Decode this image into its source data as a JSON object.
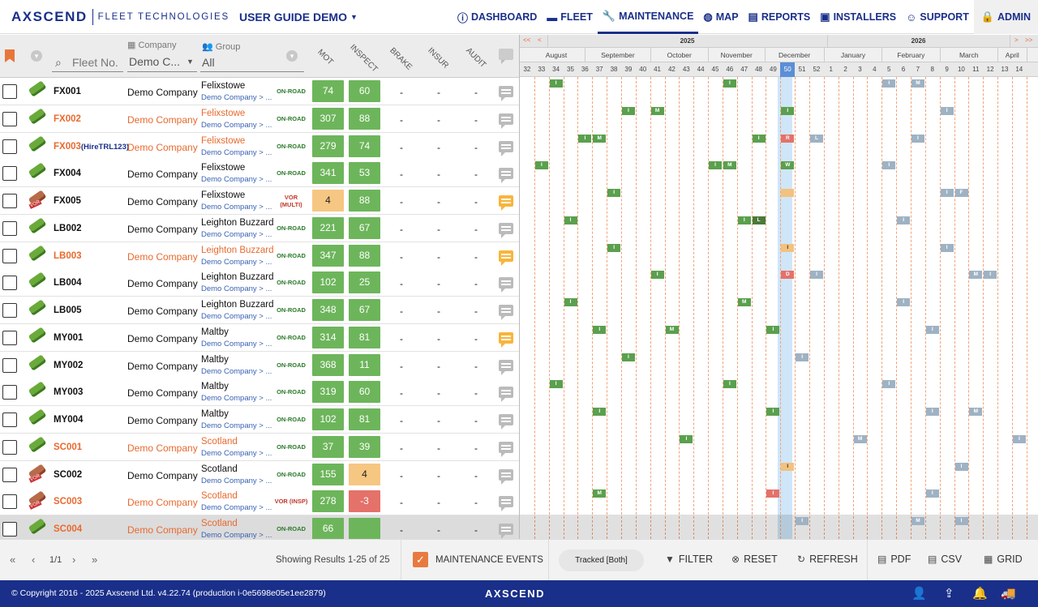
{
  "app": {
    "brand": "AXSCEND",
    "brand_sub": "FLEET TECHNOLOGIES",
    "guide_title": "USER GUIDE DEMO"
  },
  "nav": [
    {
      "label": "DASHBOARD",
      "icon": "info-icon"
    },
    {
      "label": "FLEET",
      "icon": "truck-icon"
    },
    {
      "label": "MAINTENANCE",
      "icon": "wrench-icon",
      "active": true
    },
    {
      "label": "MAP",
      "icon": "globe-icon"
    },
    {
      "label": "REPORTS",
      "icon": "report-icon"
    },
    {
      "label": "INSTALLERS",
      "icon": "id-card-icon"
    },
    {
      "label": "SUPPORT",
      "icon": "support-icon"
    },
    {
      "label": "ADMIN",
      "icon": "lock-icon"
    }
  ],
  "header": {
    "fleet_placeholder": "Fleet No.",
    "company_label": "Company",
    "company_value": "Demo C...",
    "group_label": "Group",
    "group_value": "All",
    "cols": [
      "MOT",
      "INSPECT",
      "BRAKE",
      "INSUR",
      "AUDIT"
    ]
  },
  "rows": [
    {
      "fleet": "FX001",
      "hire": "",
      "company": "Demo Company",
      "group": "Felixstowe",
      "sub": "Demo Company > ...",
      "status": "ON-ROAD",
      "mot": "74",
      "mot_c": "g",
      "insp": "60",
      "insp_c": "g",
      "chat": "grey",
      "truck": "g",
      "orange": false
    },
    {
      "fleet": "FX002",
      "hire": "",
      "company": "Demo Company",
      "group": "Felixstowe",
      "sub": "Demo Company > ...",
      "status": "ON-ROAD",
      "mot": "307",
      "mot_c": "g",
      "insp": "88",
      "insp_c": "g",
      "chat": "grey",
      "truck": "g",
      "orange": true
    },
    {
      "fleet": "FX003",
      "hire": "(HireTRL123)",
      "company": "Demo Company",
      "group": "Felixstowe",
      "sub": "Demo Company > ...",
      "status": "ON-ROAD",
      "mot": "279",
      "mot_c": "g",
      "insp": "74",
      "insp_c": "g",
      "chat": "grey",
      "truck": "g",
      "orange": true
    },
    {
      "fleet": "FX004",
      "hire": "",
      "company": "Demo Company",
      "group": "Felixstowe",
      "sub": "Demo Company > ...",
      "status": "ON-ROAD",
      "mot": "341",
      "mot_c": "g",
      "insp": "53",
      "insp_c": "g",
      "chat": "grey",
      "truck": "g",
      "orange": false
    },
    {
      "fleet": "FX005",
      "hire": "",
      "company": "Demo Company",
      "group": "Felixstowe",
      "sub": "Demo Company > ...",
      "status": "VOR\n(MULTI)",
      "mot": "4",
      "mot_c": "o",
      "insp": "88",
      "insp_c": "g",
      "chat": "yellow",
      "truck": "r",
      "orange": false
    },
    {
      "fleet": "LB002",
      "hire": "",
      "company": "Demo Company",
      "group": "Leighton Buzzard",
      "sub": "Demo Company > ...",
      "status": "ON-ROAD",
      "mot": "221",
      "mot_c": "g",
      "insp": "67",
      "insp_c": "g",
      "chat": "grey",
      "truck": "g",
      "orange": false
    },
    {
      "fleet": "LB003",
      "hire": "",
      "company": "Demo Company",
      "group": "Leighton Buzzard",
      "sub": "Demo Company > ...",
      "status": "ON-ROAD",
      "mot": "347",
      "mot_c": "g",
      "insp": "88",
      "insp_c": "g",
      "chat": "yellow",
      "truck": "g",
      "orange": true
    },
    {
      "fleet": "LB004",
      "hire": "",
      "company": "Demo Company",
      "group": "Leighton Buzzard",
      "sub": "Demo Company > ...",
      "status": "ON-ROAD",
      "mot": "102",
      "mot_c": "g",
      "insp": "25",
      "insp_c": "g",
      "chat": "grey",
      "truck": "g",
      "orange": false
    },
    {
      "fleet": "LB005",
      "hire": "",
      "company": "Demo Company",
      "group": "Leighton Buzzard",
      "sub": "Demo Company > ...",
      "status": "ON-ROAD",
      "mot": "348",
      "mot_c": "g",
      "insp": "67",
      "insp_c": "g",
      "chat": "grey",
      "truck": "g",
      "orange": false
    },
    {
      "fleet": "MY001",
      "hire": "",
      "company": "Demo Company",
      "group": "Maltby",
      "sub": "Demo Company > ...",
      "status": "ON-ROAD",
      "mot": "314",
      "mot_c": "g",
      "insp": "81",
      "insp_c": "g",
      "chat": "yellow",
      "truck": "g",
      "orange": false
    },
    {
      "fleet": "MY002",
      "hire": "",
      "company": "Demo Company",
      "group": "Maltby",
      "sub": "Demo Company > ...",
      "status": "ON-ROAD",
      "mot": "368",
      "mot_c": "g",
      "insp": "11",
      "insp_c": "g",
      "chat": "grey",
      "truck": "g",
      "orange": false
    },
    {
      "fleet": "MY003",
      "hire": "",
      "company": "Demo Company",
      "group": "Maltby",
      "sub": "Demo Company > ...",
      "status": "ON-ROAD",
      "mot": "319",
      "mot_c": "g",
      "insp": "60",
      "insp_c": "g",
      "chat": "grey",
      "truck": "g",
      "orange": false
    },
    {
      "fleet": "MY004",
      "hire": "",
      "company": "Demo Company",
      "group": "Maltby",
      "sub": "Demo Company > ...",
      "status": "ON-ROAD",
      "mot": "102",
      "mot_c": "g",
      "insp": "81",
      "insp_c": "g",
      "chat": "grey",
      "truck": "g",
      "orange": false
    },
    {
      "fleet": "SC001",
      "hire": "",
      "company": "Demo Company",
      "group": "Scotland",
      "sub": "Demo Company > ...",
      "status": "ON-ROAD",
      "mot": "37",
      "mot_c": "g",
      "insp": "39",
      "insp_c": "g",
      "chat": "grey",
      "truck": "g",
      "orange": true
    },
    {
      "fleet": "SC002",
      "hire": "",
      "company": "Demo Company",
      "group": "Scotland",
      "sub": "Demo Company > ...",
      "status": "ON-ROAD",
      "mot": "155",
      "mot_c": "g",
      "insp": "4",
      "insp_c": "o",
      "chat": "grey",
      "truck": "r",
      "orange": false
    },
    {
      "fleet": "SC003",
      "hire": "",
      "company": "Demo Company",
      "group": "Scotland",
      "sub": "Demo Company > ...",
      "status": "VOR (INSP)",
      "mot": "278",
      "mot_c": "g",
      "insp": "-3",
      "insp_c": "r",
      "chat": "grey",
      "truck": "r",
      "orange": true
    },
    {
      "fleet": "SC004",
      "hire": "",
      "company": "Demo Company",
      "group": "Scotland",
      "sub": "Demo Company > ...",
      "status": "ON-ROAD",
      "mot": "66",
      "mot_c": "g",
      "insp": "",
      "insp_c": "g",
      "chat": "grey",
      "truck": "g",
      "orange": true
    }
  ],
  "calendar": {
    "years": [
      "2025",
      "2026"
    ],
    "nav_left": [
      "<<",
      "<"
    ],
    "nav_right": [
      ">",
      ">>"
    ],
    "months": [
      "August",
      "September",
      "October",
      "November",
      "December",
      "January",
      "February",
      "March",
      "April"
    ],
    "weeks": [
      "32",
      "33",
      "34",
      "35",
      "36",
      "37",
      "38",
      "39",
      "40",
      "41",
      "42",
      "43",
      "44",
      "45",
      "46",
      "47",
      "48",
      "49",
      "50",
      "51",
      "52",
      "1",
      "2",
      "3",
      "4",
      "5",
      "6",
      "7",
      "8",
      "9",
      "10",
      "11",
      "12",
      "13",
      "14"
    ],
    "current_week": "50",
    "events": [
      [
        [
          2,
          "I",
          "g"
        ],
        [
          14,
          "I",
          "g"
        ],
        [
          25,
          "I",
          "b"
        ],
        [
          27,
          "M",
          "b"
        ]
      ],
      [
        [
          7,
          "I",
          "g"
        ],
        [
          9,
          "M",
          "g"
        ],
        [
          18,
          "I",
          "g"
        ],
        [
          29,
          "I",
          "b"
        ]
      ],
      [
        [
          4,
          "I",
          "g"
        ],
        [
          5,
          "M",
          "g"
        ],
        [
          16,
          "I",
          "g"
        ],
        [
          18,
          "R",
          "r"
        ],
        [
          20,
          "L",
          "b"
        ],
        [
          27,
          "I",
          "b"
        ]
      ],
      [
        [
          1,
          "I",
          "g"
        ],
        [
          13,
          "I",
          "g"
        ],
        [
          14,
          "M",
          "g"
        ],
        [
          18,
          "W",
          "g"
        ],
        [
          25,
          "I",
          "b"
        ]
      ],
      [
        [
          6,
          "I",
          "g"
        ],
        [
          18,
          "",
          "o"
        ],
        [
          29,
          "I",
          "b"
        ],
        [
          30,
          "F",
          "b"
        ]
      ],
      [
        [
          3,
          "I",
          "g"
        ],
        [
          15,
          "I",
          "g"
        ],
        [
          16,
          "L",
          "d"
        ],
        [
          26,
          "I",
          "b"
        ]
      ],
      [
        [
          6,
          "I",
          "g"
        ],
        [
          18,
          "I",
          "o"
        ],
        [
          29,
          "I",
          "b"
        ]
      ],
      [
        [
          9,
          "I",
          "g"
        ],
        [
          18,
          "D",
          "r"
        ],
        [
          20,
          "I",
          "b"
        ],
        [
          31,
          "M",
          "b"
        ],
        [
          32,
          "I",
          "b"
        ]
      ],
      [
        [
          3,
          "I",
          "g"
        ],
        [
          15,
          "M",
          "g"
        ],
        [
          26,
          "I",
          "b"
        ]
      ],
      [
        [
          5,
          "I",
          "g"
        ],
        [
          10,
          "M",
          "g"
        ],
        [
          17,
          "I",
          "g"
        ],
        [
          28,
          "I",
          "b"
        ]
      ],
      [
        [
          7,
          "I",
          "g"
        ],
        [
          19,
          "I",
          "b"
        ]
      ],
      [
        [
          2,
          "I",
          "g"
        ],
        [
          14,
          "I",
          "g"
        ],
        [
          25,
          "I",
          "b"
        ]
      ],
      [
        [
          5,
          "I",
          "g"
        ],
        [
          17,
          "I",
          "g"
        ],
        [
          28,
          "I",
          "b"
        ],
        [
          31,
          "M",
          "b"
        ]
      ],
      [
        [
          11,
          "I",
          "g"
        ],
        [
          23,
          "M",
          "b"
        ],
        [
          34,
          "I",
          "b"
        ]
      ],
      [
        [
          18,
          "I",
          "o"
        ],
        [
          30,
          "I",
          "b"
        ]
      ],
      [
        [
          5,
          "M",
          "g"
        ],
        [
          17,
          "I",
          "r"
        ],
        [
          28,
          "I",
          "b"
        ]
      ],
      [
        [
          19,
          "I",
          "b"
        ],
        [
          27,
          "M",
          "b"
        ],
        [
          30,
          "I",
          "b"
        ]
      ]
    ]
  },
  "toolbar": {
    "first": "«",
    "prev": "‹",
    "page": "1/1",
    "next": "›",
    "last": "»",
    "showing": "Showing Results 1-25 of 25",
    "maint_events": "MAINTENANCE EVENTS",
    "tracked": "Tracked [Both]",
    "filter": "FILTER",
    "reset": "RESET",
    "refresh": "REFRESH",
    "pdf": "PDF",
    "csv": "CSV",
    "grid": "GRID"
  },
  "footer": {
    "copyright": "© Copyright 2016 - 2025 Axscend Ltd. v4.22.74 (production i-0e5698e05e1ee2879)",
    "logo": "AXSCEND"
  },
  "colors": {
    "brand": "#1a2f8a",
    "accent": "#e86a2e",
    "green": "#6db55b",
    "amber": "#f6c782",
    "red": "#e4716a"
  }
}
